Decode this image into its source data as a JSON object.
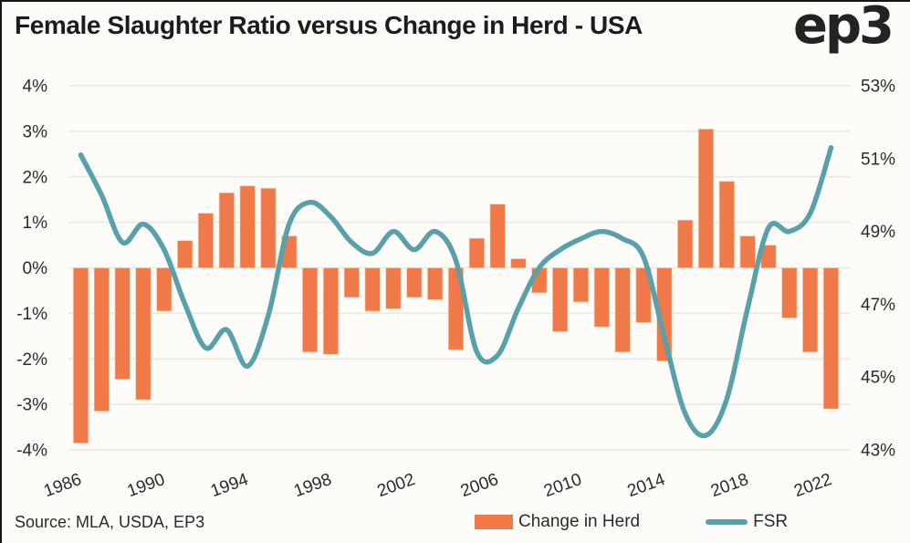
{
  "header": {
    "title": "Female Slaughter Ratio versus Change in Herd - USA",
    "logo": "ep3"
  },
  "footer": {
    "source": "Source: MLA, USDA, EP3"
  },
  "legend": [
    {
      "label": "Change in Herd",
      "swatch": "bar-swatch",
      "color": "#F0794A"
    },
    {
      "label": "FSR",
      "swatch": "line-swatch",
      "color": "#58A1AB"
    }
  ],
  "colors": {
    "bar": "#F0794A",
    "bar_edge": "#F8CFAE",
    "line": "#58A1AB",
    "grid": "#ECE9DD",
    "text": "#2b2b2b",
    "background": "#FDFCF8"
  },
  "chart_data": {
    "type": "combo",
    "title": "Female Slaughter Ratio versus Change in Herd - USA",
    "x": [
      1986,
      1987,
      1988,
      1989,
      1990,
      1991,
      1992,
      1993,
      1994,
      1995,
      1996,
      1997,
      1998,
      1999,
      2000,
      2001,
      2002,
      2003,
      2004,
      2005,
      2006,
      2007,
      2008,
      2009,
      2010,
      2011,
      2012,
      2013,
      2014,
      2015,
      2016,
      2017,
      2018,
      2019,
      2020,
      2021,
      2022
    ],
    "series": [
      {
        "name": "Change in Herd",
        "type": "bar",
        "axis": "left",
        "color": "#F0794A",
        "values": [
          -3.85,
          -3.15,
          -2.45,
          -2.9,
          -0.95,
          0.6,
          1.2,
          1.65,
          1.8,
          1.75,
          0.7,
          -1.85,
          -1.9,
          -0.65,
          -0.95,
          -0.9,
          -0.65,
          -0.7,
          -1.8,
          0.65,
          1.4,
          0.2,
          -0.55,
          -1.4,
          -0.75,
          -1.3,
          -1.85,
          -1.2,
          -2.05,
          1.05,
          3.05,
          1.9,
          0.7,
          0.5,
          -1.1,
          -1.85,
          -3.1
        ]
      },
      {
        "name": "FSR",
        "type": "line",
        "axis": "right",
        "color": "#58A1AB",
        "values": [
          51.1,
          50.0,
          48.7,
          49.2,
          48.5,
          47.0,
          45.8,
          46.3,
          45.3,
          46.7,
          49.2,
          49.8,
          49.4,
          48.7,
          48.4,
          49.0,
          48.5,
          49.0,
          48.2,
          45.7,
          45.6,
          46.9,
          48.0,
          48.5,
          48.8,
          49.0,
          48.8,
          48.3,
          46.1,
          44.0,
          43.4,
          44.4,
          46.9,
          49.1,
          49.0,
          49.5,
          51.3
        ]
      }
    ],
    "left_axis": {
      "ticks": [
        "4%",
        "3%",
        "2%",
        "1%",
        "0%",
        "-1%",
        "-2%",
        "-3%",
        "-4%"
      ],
      "min": -4,
      "max": 4
    },
    "right_axis": {
      "ticks": [
        "53%",
        "51%",
        "49%",
        "47%",
        "45%",
        "43%"
      ],
      "min": 43,
      "max": 53
    },
    "x_axis": {
      "tick_years": [
        1986,
        1990,
        1994,
        1998,
        2002,
        2006,
        2010,
        2014,
        2018,
        2022
      ],
      "label_rotation_deg": -20
    },
    "grid": true,
    "legend_position": "bottom-right"
  }
}
